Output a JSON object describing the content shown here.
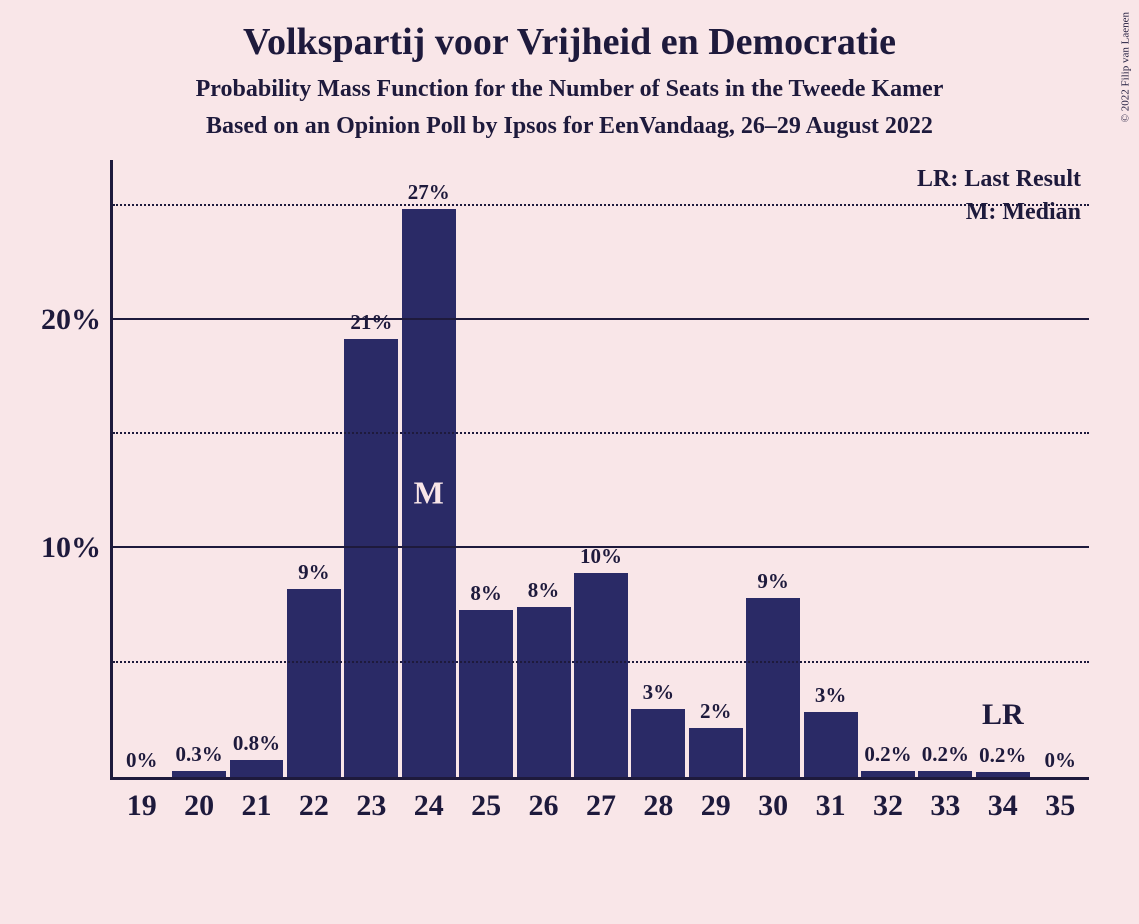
{
  "background_color": "#f9e6e8",
  "text_color": "#1e1a3c",
  "axis_color": "#1e1a3c",
  "title": {
    "text": "Volkspartij voor Vrijheid en Democratie",
    "fontsize": 38
  },
  "subtitle1": {
    "text": "Probability Mass Function for the Number of Seats in the Tweede Kamer",
    "fontsize": 24
  },
  "subtitle2": {
    "text": "Based on an Opinion Poll by Ipsos for EenVandaag, 26–29 August 2022",
    "fontsize": 24
  },
  "copyright": "© 2022 Filip van Laenen",
  "legend": {
    "lr": "LR: Last Result",
    "m": "M: Median",
    "fontsize": 24
  },
  "chart": {
    "type": "bar",
    "bar_color": "#2a2a66",
    "grid_color_major": "#1e1a3c",
    "grid_color_minor": "#1e1a3c",
    "ylim_max": 27,
    "y_major_ticks": [
      10,
      20
    ],
    "y_minor_ticks": [
      5,
      15,
      25
    ],
    "ytick_fontsize": 30,
    "xtick_fontsize": 30,
    "barlabel_fontsize": 21,
    "median_marker_text": "M",
    "median_marker_fontsize": 32,
    "median_marker_color": "#f9e6e8",
    "lr_marker_text": "LR",
    "lr_marker_fontsize": 30,
    "categories": [
      "19",
      "20",
      "21",
      "22",
      "23",
      "24",
      "25",
      "26",
      "27",
      "28",
      "29",
      "30",
      "31",
      "32",
      "33",
      "34",
      "35"
    ],
    "values": [
      0,
      0.3,
      0.8,
      9,
      21,
      27,
      8,
      8,
      10,
      3,
      2,
      9,
      3,
      0.2,
      0.2,
      0.2,
      0
    ],
    "value_labels": [
      "0%",
      "0.3%",
      "0.8%",
      "9%",
      "21%",
      "27%",
      "8%",
      "8%",
      "10%",
      "3%",
      "2%",
      "9%",
      "3%",
      "0.2%",
      "0.2%",
      "0.2%",
      "0%"
    ],
    "median_index": 5,
    "lr_index": 15,
    "bar_heights_pct": [
      0,
      1.0,
      2.7,
      30.5,
      71,
      92,
      27,
      27.5,
      33,
      11,
      8,
      29,
      10.5,
      1,
      1,
      0.8,
      0
    ]
  }
}
